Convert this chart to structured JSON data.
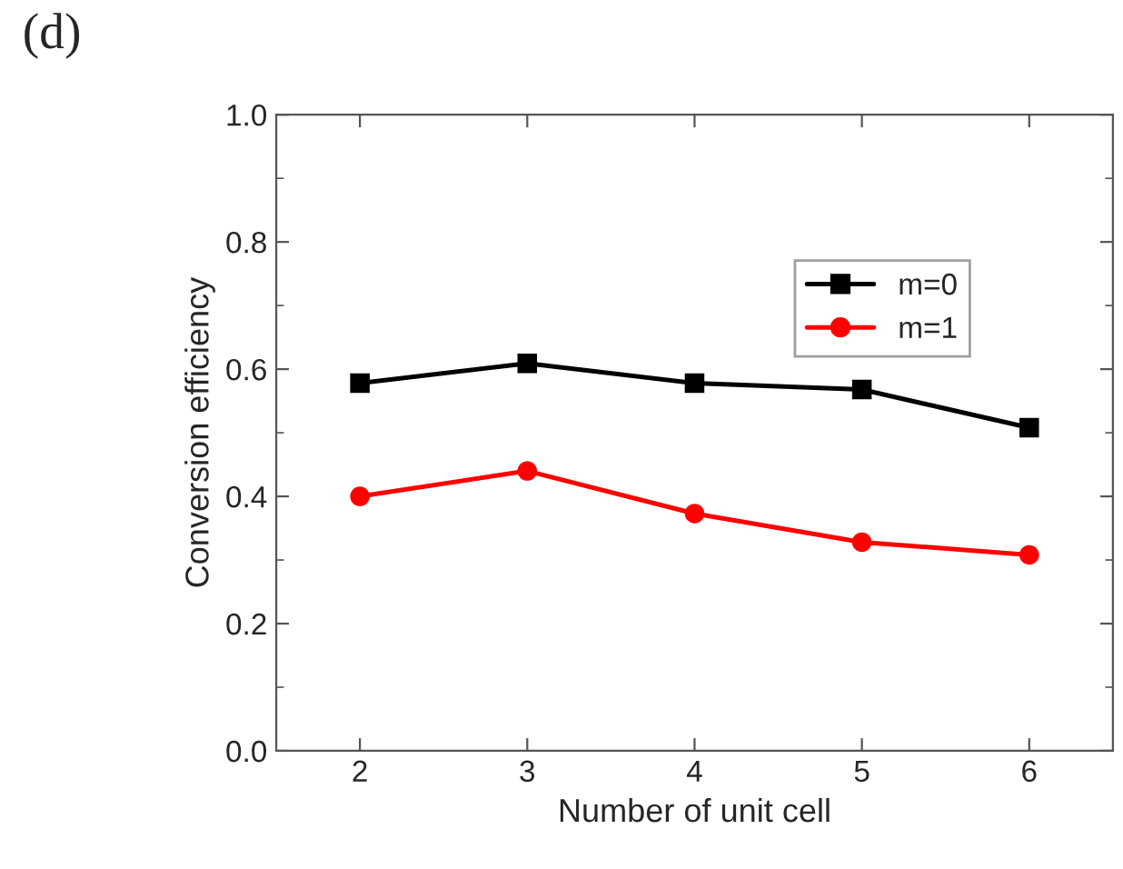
{
  "chart_data": {
    "type": "line",
    "title": "(d)",
    "xlabel": "Number of unit cell",
    "ylabel": "Conversion efficiency",
    "x": [
      2,
      3,
      4,
      5,
      6
    ],
    "series": [
      {
        "name": "m=0",
        "color": "#000000",
        "marker": "square",
        "values": [
          0.578,
          0.609,
          0.578,
          0.568,
          0.508
        ]
      },
      {
        "name": "m=1",
        "color": "#ff0000",
        "marker": "circle",
        "values": [
          0.4,
          0.44,
          0.373,
          0.328,
          0.308
        ]
      }
    ],
    "xlim": [
      1.5,
      6.5
    ],
    "xticks": [
      2,
      3,
      4,
      5,
      6
    ],
    "ylim": [
      0.0,
      1.0
    ],
    "yticks": [
      {
        "value": 0.0,
        "label": "0.0"
      },
      {
        "value": 0.2,
        "label": "0.2"
      },
      {
        "value": 0.4,
        "label": "0.4"
      },
      {
        "value": 0.6,
        "label": "0.6"
      },
      {
        "value": 0.8,
        "label": "0.8"
      },
      {
        "value": 1.0,
        "label": "1.0"
      }
    ],
    "legend": "top right",
    "grid": false,
    "line_style": "solid"
  }
}
